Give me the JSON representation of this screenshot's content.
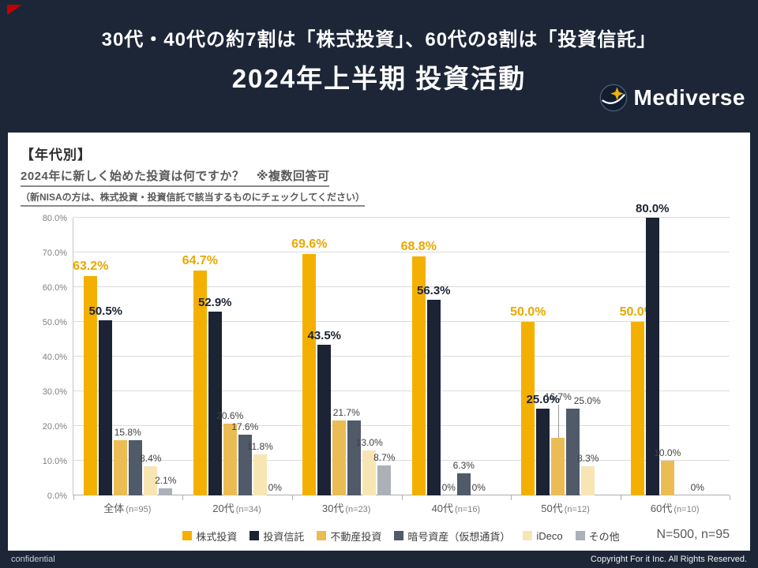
{
  "slide": {
    "title_line1": "30代・40代の約7割は「株式投資」、60代の8割は「投資信託」",
    "title_line2": "2024年上半期 投資活動",
    "logo_text": "Mediverse",
    "footer_left": "confidential",
    "footer_right": "Copyright For it Inc. All Rights Reserved.",
    "colors": {
      "background": "#1C2637",
      "accent_red": "#C00000",
      "gold": "#F4B000"
    }
  },
  "panel": {
    "section_label": "【年代別】",
    "question": "2024年に新しく始めた投資は何ですか？　※複数回答可",
    "note": "（新NISAの方は、株式投資・投資信託で該当するものにチェックしてください）",
    "sample_size": "N=500, n=95"
  },
  "chart_data": {
    "type": "bar",
    "title": "2024年に新しく始めた投資は何ですか？　※複数回答可",
    "xlabel": "",
    "ylabel": "",
    "ylim": [
      0,
      80
    ],
    "ytick_step": 10,
    "ytick_format": "0.0%",
    "grid": true,
    "legend_position": "bottom",
    "categories": [
      "全体",
      "20代",
      "30代",
      "40代",
      "50代",
      "60代"
    ],
    "category_ns": [
      "(n=95)",
      "(n=34)",
      "(n=23)",
      "(n=16)",
      "(n=12)",
      "(n=10)"
    ],
    "series": [
      {
        "name": "株式投資",
        "color": "#F4B000",
        "label_style": "gold",
        "values": [
          63.2,
          64.7,
          69.6,
          68.8,
          50.0,
          50.0
        ],
        "labels": [
          "63.2%",
          "64.7%",
          "69.6%",
          "68.8%",
          "50.0%",
          "50.0%"
        ]
      },
      {
        "name": "投資信託",
        "color": "#1B2334",
        "label_style": "dark",
        "values": [
          50.5,
          52.9,
          43.5,
          56.3,
          25.0,
          80.0
        ],
        "labels": [
          "50.5%",
          "52.9%",
          "43.5%",
          "56.3%",
          "25.0%",
          "80.0%"
        ]
      },
      {
        "name": "不動産投資",
        "color": "#EBBC54",
        "label_style": "small",
        "values": [
          15.8,
          20.6,
          21.7,
          0,
          16.7,
          10.0
        ],
        "labels": [
          "15.8%",
          "20.6%",
          "21.7%",
          "0%",
          "16.7%",
          "10.0%"
        ]
      },
      {
        "name": "暗号資産（仮想通貨）",
        "color": "#505A69",
        "label_style": "small",
        "values": [
          15.8,
          17.6,
          21.7,
          6.3,
          25.0,
          0
        ],
        "labels": [
          "",
          "17.6%",
          "",
          "6.3%",
          "25.0%",
          ""
        ]
      },
      {
        "name": "iDeco",
        "color": "#F7E6B4",
        "label_style": "small",
        "values": [
          8.4,
          11.8,
          13.0,
          0,
          8.3,
          0
        ],
        "labels": [
          "8.4%",
          "11.8%",
          "13.0%",
          "0%",
          "8.3%",
          "0%"
        ]
      },
      {
        "name": "その他",
        "color": "#ACB0B7",
        "label_style": "small",
        "values": [
          2.1,
          0,
          8.7,
          0,
          0,
          0
        ],
        "labels": [
          "2.1%",
          "0%",
          "8.7%",
          "",
          "",
          ""
        ]
      }
    ],
    "label_overrides": [
      {
        "series": 2,
        "cat": 0,
        "dx": 9
      },
      {
        "series": 2,
        "cat": 2,
        "dx": 9
      },
      {
        "series": 2,
        "cat": 4,
        "dy": -42,
        "leader": true
      },
      {
        "series": 3,
        "cat": 4,
        "dx": 18
      }
    ]
  }
}
